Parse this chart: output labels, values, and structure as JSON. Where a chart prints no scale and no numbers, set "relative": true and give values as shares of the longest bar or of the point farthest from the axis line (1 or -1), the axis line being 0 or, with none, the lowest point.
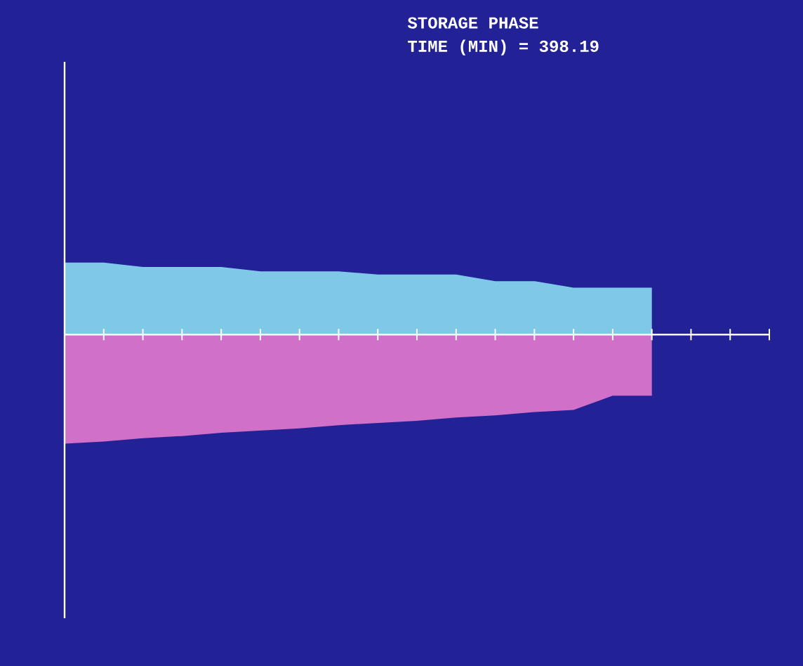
{
  "chart_data": {
    "type": "area",
    "title": "STORAGE PHASE",
    "subtitle": "TIME (MIN) =    398.19",
    "relative": true,
    "categories": [
      null,
      null,
      null,
      null,
      null,
      null,
      null,
      null,
      null,
      null,
      null,
      null,
      null,
      null,
      null,
      null,
      null,
      null,
      null
    ],
    "series": [
      {
        "color": "#80c8e8",
        "values": [
          0.66,
          0.66,
          0.62,
          0.62,
          0.62,
          0.58,
          0.58,
          0.58,
          0.55,
          0.55,
          0.55,
          0.49,
          0.49,
          0.43,
          0.43,
          0.43,
          null,
          null,
          null
        ]
      },
      {
        "color": "#d070c8",
        "values": [
          -1,
          -0.98,
          -0.95,
          -0.93,
          -0.9,
          -0.88,
          -0.86,
          -0.83,
          -0.81,
          -0.79,
          -0.76,
          -0.74,
          -0.71,
          -0.69,
          -0.56,
          -0.56,
          null,
          null,
          null
        ]
      }
    ]
  }
}
